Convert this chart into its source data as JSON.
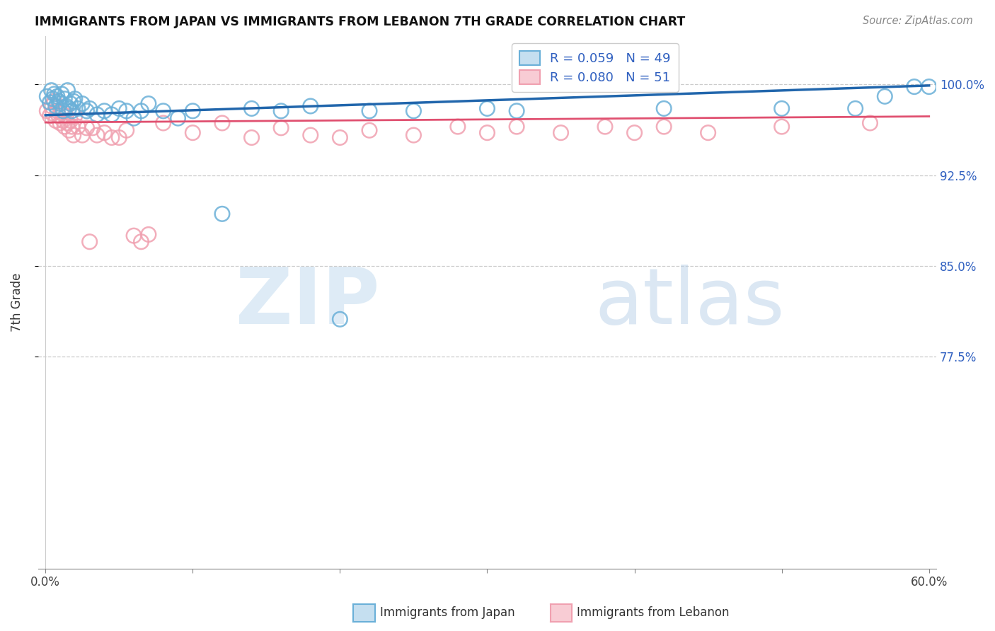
{
  "title": "IMMIGRANTS FROM JAPAN VS IMMIGRANTS FROM LEBANON 7TH GRADE CORRELATION CHART",
  "source": "Source: ZipAtlas.com",
  "ylabel": "7th Grade",
  "ytick_labels": [
    "100.0%",
    "92.5%",
    "85.0%",
    "77.5%"
  ],
  "ytick_values": [
    1.0,
    0.925,
    0.85,
    0.775
  ],
  "xlim": [
    0.0,
    0.6
  ],
  "ylim": [
    0.6,
    1.04
  ],
  "japan_color": "#6ab0d8",
  "lebanon_color": "#f0a0b0",
  "japan_R": "0.059",
  "japan_N": "49",
  "lebanon_R": "0.080",
  "lebanon_N": "51",
  "japan_trend_color": "#2166ac",
  "lebanon_trend_color": "#e05070",
  "japan_x": [
    0.001,
    0.003,
    0.004,
    0.005,
    0.006,
    0.007,
    0.008,
    0.009,
    0.01,
    0.011,
    0.012,
    0.013,
    0.014,
    0.015,
    0.016,
    0.017,
    0.018,
    0.019,
    0.02,
    0.022,
    0.025,
    0.028,
    0.03,
    0.035,
    0.04,
    0.045,
    0.05,
    0.055,
    0.06,
    0.065,
    0.07,
    0.08,
    0.09,
    0.1,
    0.12,
    0.14,
    0.16,
    0.18,
    0.2,
    0.22,
    0.25,
    0.3,
    0.32,
    0.42,
    0.5,
    0.55,
    0.57,
    0.59,
    0.6
  ],
  "japan_y": [
    0.99,
    0.985,
    0.995,
    0.988,
    0.992,
    0.982,
    0.99,
    0.986,
    0.984,
    0.992,
    0.978,
    0.988,
    0.982,
    0.995,
    0.98,
    0.984,
    0.978,
    0.986,
    0.988,
    0.98,
    0.984,
    0.978,
    0.98,
    0.975,
    0.978,
    0.975,
    0.98,
    0.978,
    0.972,
    0.978,
    0.984,
    0.978,
    0.972,
    0.978,
    0.893,
    0.98,
    0.978,
    0.982,
    0.806,
    0.978,
    0.978,
    0.98,
    0.978,
    0.98,
    0.98,
    0.98,
    0.99,
    0.998,
    0.998
  ],
  "lebanon_x": [
    0.001,
    0.003,
    0.004,
    0.005,
    0.006,
    0.007,
    0.008,
    0.009,
    0.01,
    0.011,
    0.012,
    0.013,
    0.014,
    0.015,
    0.016,
    0.017,
    0.018,
    0.019,
    0.02,
    0.022,
    0.025,
    0.028,
    0.03,
    0.032,
    0.035,
    0.04,
    0.045,
    0.05,
    0.055,
    0.06,
    0.065,
    0.07,
    0.08,
    0.1,
    0.12,
    0.14,
    0.16,
    0.18,
    0.2,
    0.22,
    0.25,
    0.28,
    0.3,
    0.32,
    0.35,
    0.38,
    0.4,
    0.42,
    0.45,
    0.5,
    0.56
  ],
  "lebanon_y": [
    0.978,
    0.974,
    0.982,
    0.976,
    0.986,
    0.97,
    0.978,
    0.974,
    0.968,
    0.976,
    0.97,
    0.965,
    0.974,
    0.968,
    0.962,
    0.97,
    0.965,
    0.958,
    0.974,
    0.965,
    0.958,
    0.964,
    0.87,
    0.964,
    0.958,
    0.96,
    0.956,
    0.956,
    0.962,
    0.875,
    0.87,
    0.876,
    0.968,
    0.96,
    0.968,
    0.956,
    0.964,
    0.958,
    0.956,
    0.962,
    0.958,
    0.965,
    0.96,
    0.965,
    0.96,
    0.965,
    0.96,
    0.965,
    0.96,
    0.965,
    0.968
  ],
  "japan_trend_x0": 0.0,
  "japan_trend_x1": 0.6,
  "japan_trend_y0": 0.9745,
  "japan_trend_y1": 0.999,
  "lebanon_trend_x0": 0.0,
  "lebanon_trend_x1": 0.6,
  "lebanon_trend_y0": 0.9685,
  "lebanon_trend_y1": 0.9735
}
